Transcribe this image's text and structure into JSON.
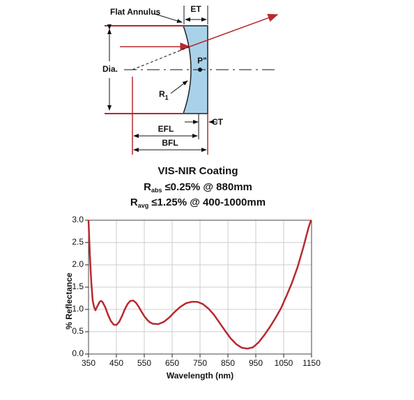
{
  "diagram": {
    "flat_annulus": "Flat Annulus",
    "et": "ET",
    "dia": "Dia.",
    "p": "P\"",
    "r1": {
      "symbol": "R",
      "sub": "1"
    },
    "ct": "CT",
    "efl": "EFL",
    "bfl": "BFL"
  },
  "chart_data": {
    "type": "line",
    "title": "VIS-NIR Coating",
    "subtitle": [
      {
        "symbol": "R",
        "sub": "abs",
        "text": "≤0.25% @ 880mm"
      },
      {
        "symbol": "R",
        "sub": "avg",
        "text": "≤1.25% @ 400-1000mm"
      }
    ],
    "x_label": "Wavelength (nm)",
    "y_label": "% Reflectance",
    "color": "#b8282e",
    "grid": true,
    "x": [
      350,
      355,
      360,
      365,
      370,
      375,
      380,
      390,
      395,
      400,
      410,
      420,
      430,
      440,
      450,
      460,
      470,
      480,
      490,
      500,
      510,
      520,
      530,
      540,
      550,
      560,
      570,
      580,
      600,
      620,
      640,
      660,
      680,
      700,
      720,
      740,
      760,
      780,
      800,
      820,
      840,
      860,
      880,
      900,
      920,
      940,
      960,
      980,
      1000,
      1020,
      1040,
      1060,
      1080,
      1100,
      1120,
      1140,
      1148
    ],
    "values": [
      3.0,
      2.2,
      1.6,
      1.2,
      1.05,
      0.98,
      1.05,
      1.17,
      1.19,
      1.17,
      1.05,
      0.88,
      0.74,
      0.66,
      0.65,
      0.72,
      0.85,
      1.0,
      1.12,
      1.19,
      1.2,
      1.15,
      1.06,
      0.95,
      0.85,
      0.77,
      0.71,
      0.68,
      0.67,
      0.72,
      0.82,
      0.95,
      1.06,
      1.14,
      1.17,
      1.17,
      1.12,
      1.02,
      0.88,
      0.7,
      0.52,
      0.35,
      0.22,
      0.14,
      0.12,
      0.15,
      0.26,
      0.42,
      0.6,
      0.8,
      1.02,
      1.3,
      1.6,
      1.95,
      2.38,
      2.85,
      3.0
    ],
    "xlim": [
      350,
      1150
    ],
    "xticks": [
      350,
      450,
      550,
      650,
      750,
      850,
      950,
      1050,
      1150
    ],
    "ylim": [
      0,
      3
    ],
    "yticks": [
      {
        "value": 0,
        "label": "0.0"
      },
      0.5,
      {
        "value": 1,
        "label": "1.0"
      },
      1.5,
      {
        "value": 2,
        "label": "2.0"
      },
      2.5,
      {
        "value": 3,
        "label": "3.0"
      }
    ]
  }
}
